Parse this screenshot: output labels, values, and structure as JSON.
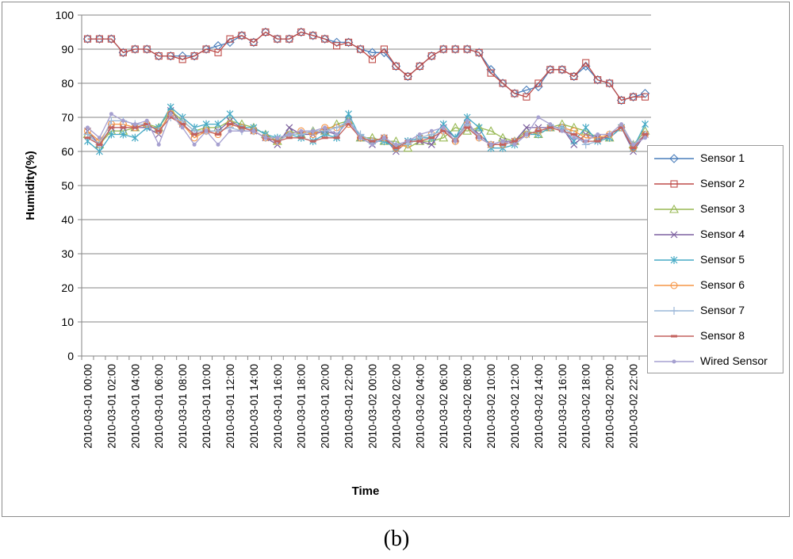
{
  "caption": "(b)",
  "chart_data": {
    "type": "line",
    "title": "",
    "xlabel": "Time",
    "ylabel": "Humidity(%)",
    "ylim": [
      0,
      100
    ],
    "yticks": [
      0,
      10,
      20,
      30,
      40,
      50,
      60,
      70,
      80,
      90,
      100
    ],
    "grid": "horizontal",
    "legend_position": "right",
    "x_tick_labels": [
      "2010-03-01 00:00",
      "2010-03-01 02:00",
      "2010-03-01 04:00",
      "2010-03-01 06:00",
      "2010-03-01 08:00",
      "2010-03-01 10:00",
      "2010-03-01 12:00",
      "2010-03-01 14:00",
      "2010-03-01 16:00",
      "2010-03-01 18:00",
      "2010-03-01 20:00",
      "2010-03-01 22:00",
      "2010-03-02 00:00",
      "2010-03-02 02:00",
      "2010-03-02 04:00",
      "2010-03-02 06:00",
      "2010-03-02 08:00",
      "2010-03-02 10:00",
      "2010-03-02 12:00",
      "2010-03-02 14:00",
      "2010-03-02 16:00",
      "2010-03-02 18:00",
      "2010-03-02 20:00",
      "2010-03-02 22:00"
    ],
    "x": [
      "2010-03-01 00:00",
      "2010-03-01 01:00",
      "2010-03-01 02:00",
      "2010-03-01 03:00",
      "2010-03-01 04:00",
      "2010-03-01 05:00",
      "2010-03-01 06:00",
      "2010-03-01 07:00",
      "2010-03-01 08:00",
      "2010-03-01 09:00",
      "2010-03-01 10:00",
      "2010-03-01 11:00",
      "2010-03-01 12:00",
      "2010-03-01 13:00",
      "2010-03-01 14:00",
      "2010-03-01 15:00",
      "2010-03-01 16:00",
      "2010-03-01 17:00",
      "2010-03-01 18:00",
      "2010-03-01 19:00",
      "2010-03-01 20:00",
      "2010-03-01 21:00",
      "2010-03-01 22:00",
      "2010-03-01 23:00",
      "2010-03-02 00:00",
      "2010-03-02 01:00",
      "2010-03-02 02:00",
      "2010-03-02 03:00",
      "2010-03-02 04:00",
      "2010-03-02 05:00",
      "2010-03-02 06:00",
      "2010-03-02 07:00",
      "2010-03-02 08:00",
      "2010-03-02 09:00",
      "2010-03-02 10:00",
      "2010-03-02 11:00",
      "2010-03-02 12:00",
      "2010-03-02 13:00",
      "2010-03-02 14:00",
      "2010-03-02 15:00",
      "2010-03-02 16:00",
      "2010-03-02 17:00",
      "2010-03-02 18:00",
      "2010-03-02 19:00",
      "2010-03-02 20:00",
      "2010-03-02 21:00",
      "2010-03-02 22:00",
      "2010-03-02 23:00"
    ],
    "series": [
      {
        "name": "Sensor 1",
        "color": "#4a7ebb",
        "marker": "diamond",
        "values": [
          93,
          93,
          93,
          89,
          90,
          90,
          88,
          88,
          88,
          88,
          90,
          91,
          92,
          94,
          92,
          95,
          93,
          93,
          95,
          94,
          93,
          92,
          92,
          90,
          89,
          89,
          85,
          82,
          85,
          88,
          90,
          90,
          90,
          89,
          84,
          80,
          77,
          78,
          79,
          84,
          84,
          82,
          85,
          81,
          80,
          75,
          76,
          77
        ]
      },
      {
        "name": "Sensor 2",
        "color": "#be4b48",
        "marker": "square",
        "values": [
          93,
          93,
          93,
          89,
          90,
          90,
          88,
          88,
          87,
          88,
          90,
          89,
          93,
          94,
          92,
          95,
          93,
          93,
          95,
          94,
          93,
          91,
          92,
          90,
          87,
          90,
          85,
          82,
          85,
          88,
          90,
          90,
          90,
          89,
          83,
          80,
          77,
          76,
          80,
          84,
          84,
          82,
          86,
          81,
          80,
          75,
          76,
          76
        ]
      },
      {
        "name": "Sensor 3",
        "color": "#98b954",
        "marker": "triangle",
        "values": [
          65,
          62,
          66,
          66,
          67,
          68,
          67,
          72,
          69,
          66,
          67,
          67,
          69,
          68,
          67,
          65,
          63,
          66,
          65,
          66,
          66,
          68,
          69,
          64,
          64,
          63,
          63,
          61,
          63,
          63,
          64,
          67,
          66,
          67,
          66,
          64,
          63,
          66,
          65,
          67,
          68,
          67,
          66,
          64,
          64,
          67,
          62,
          66
        ]
      },
      {
        "name": "Sensor 4",
        "color": "#7d60a0",
        "marker": "x",
        "values": [
          66,
          62,
          67,
          67,
          67,
          67,
          65,
          72,
          68,
          65,
          66,
          66,
          69,
          67,
          66,
          64,
          62,
          67,
          65,
          65,
          66,
          65,
          69,
          64,
          62,
          64,
          60,
          63,
          63,
          62,
          67,
          64,
          68,
          65,
          62,
          63,
          63,
          67,
          67,
          67,
          67,
          62,
          65,
          64,
          64,
          67,
          60,
          65
        ]
      },
      {
        "name": "Sensor 5",
        "color": "#46aac5",
        "marker": "star",
        "values": [
          63,
          60,
          65,
          65,
          64,
          67,
          67,
          73,
          70,
          67,
          68,
          68,
          71,
          67,
          67,
          65,
          64,
          65,
          64,
          63,
          65,
          64,
          71,
          64,
          63,
          63,
          61,
          63,
          64,
          64,
          68,
          64,
          70,
          67,
          61,
          61,
          62,
          65,
          65,
          67,
          67,
          63,
          67,
          63,
          64,
          67,
          61,
          68
        ]
      },
      {
        "name": "Sensor 6",
        "color": "#f69546",
        "marker": "circle",
        "values": [
          66,
          63,
          68,
          68,
          67,
          68,
          66,
          71,
          68,
          64,
          66,
          65,
          68,
          67,
          66,
          64,
          63,
          65,
          66,
          65,
          67,
          67,
          68,
          64,
          63,
          64,
          61,
          62,
          64,
          65,
          66,
          63,
          68,
          64,
          62,
          62,
          63,
          65,
          66,
          67,
          67,
          66,
          64,
          64,
          65,
          67,
          61,
          65
        ]
      },
      {
        "name": "Sensor 7",
        "color": "#9cb8d9",
        "marker": "plus",
        "values": [
          65,
          62,
          69,
          69,
          68,
          68,
          66,
          70,
          69,
          66,
          66,
          66,
          67,
          66,
          66,
          64,
          63,
          65,
          65,
          66,
          66,
          67,
          69,
          65,
          63,
          64,
          62,
          62,
          64,
          65,
          66,
          63,
          68,
          64,
          62,
          62,
          63,
          65,
          66,
          67,
          67,
          65,
          62,
          63,
          65,
          67,
          62,
          65
        ]
      },
      {
        "name": "Sensor 8",
        "color": "#c3615e",
        "marker": "dash",
        "values": [
          64,
          62,
          67,
          67,
          67,
          68,
          66,
          70,
          68,
          65,
          66,
          65,
          68,
          67,
          66,
          64,
          63,
          64,
          64,
          63,
          64,
          64,
          68,
          64,
          63,
          64,
          61,
          63,
          63,
          64,
          66,
          63,
          67,
          64,
          62,
          62,
          63,
          65,
          66,
          67,
          66,
          65,
          63,
          63,
          65,
          67,
          61,
          65
        ]
      },
      {
        "name": "Wired Sensor",
        "color": "#a6a0d0",
        "marker": "dot",
        "values": [
          67,
          64,
          71,
          69,
          68,
          69,
          62,
          71,
          67,
          62,
          66,
          62,
          66,
          66,
          66,
          64,
          64,
          65,
          66,
          66,
          67,
          65,
          69,
          64,
          62,
          64,
          62,
          63,
          65,
          66,
          67,
          63,
          69,
          64,
          62,
          63,
          62,
          65,
          70,
          68,
          66,
          64,
          63,
          65,
          65,
          68,
          62,
          64
        ]
      }
    ]
  }
}
